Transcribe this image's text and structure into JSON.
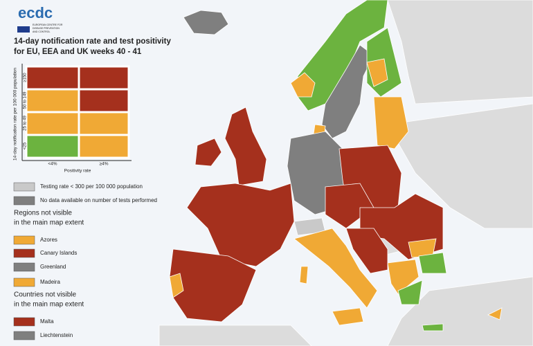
{
  "header": {
    "logo": "ecdc",
    "logo_subtitle": [
      "EUROPEAN CENTRE FOR",
      "DISEASE PREVENTION",
      "AND CONTROL"
    ],
    "title": [
      "14-day notification rate and test positivity",
      "for EU, EEA and UK weeks 40 - 41"
    ]
  },
  "matrix": {
    "y_axis_label": "14-day notification rate per 100 000 population",
    "row_labels": [
      "≥150",
      "50 to 149",
      "25 to 49",
      "<25"
    ],
    "column_labels": [
      "<4%",
      "≥4%"
    ],
    "x_axis_label": "Positivity rate"
  },
  "legend": {
    "items": [
      "Testing rate < 300 per 100 000 population",
      "No data available on number of tests performed"
    ],
    "regions_heading": [
      "Regions not visible",
      "in the main map extent"
    ],
    "regions": [
      "Azores",
      "Canary Islands",
      "Greenland",
      "Madeira"
    ],
    "countries_heading": [
      "Countries not visible",
      "in the main map extent"
    ],
    "countries": [
      "Malta",
      "Liechtenstein"
    ]
  }
}
